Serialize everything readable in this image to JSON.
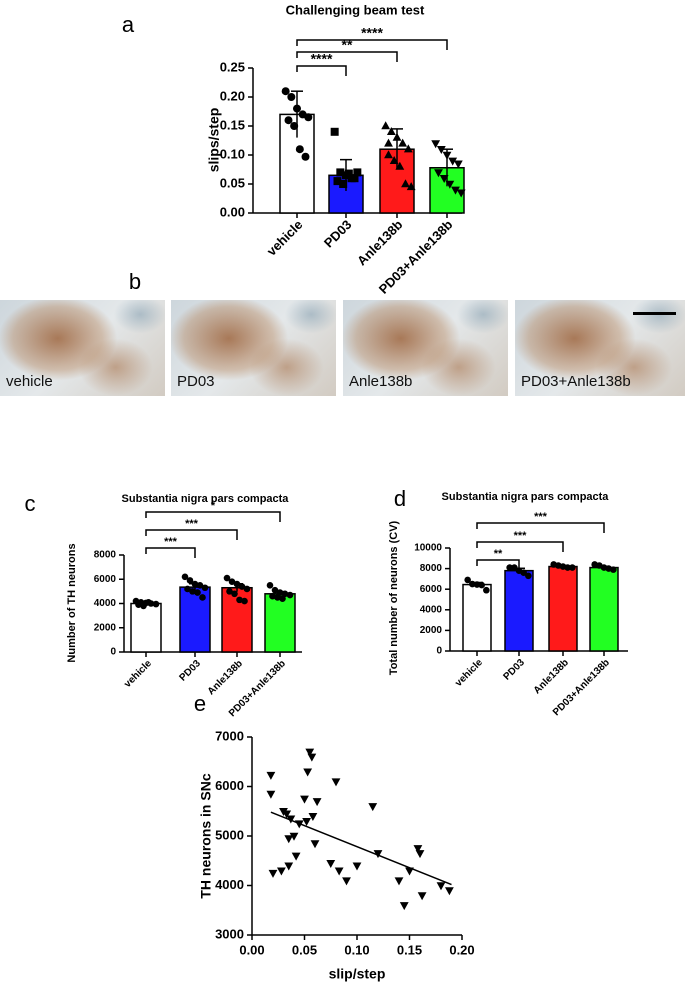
{
  "panel_labels": [
    "a",
    "b",
    "c",
    "d",
    "e"
  ],
  "micrographs": {
    "labels": [
      "vehicle",
      "PD03",
      "Anle138b",
      "PD03+Anle138b"
    ]
  },
  "chart_data": [
    {
      "type": "bar",
      "title": "Challenging beam test",
      "y_label": "slips/step",
      "categories": [
        "vehicle",
        "PD03",
        "Anle138b",
        "PD03+Anle138b"
      ],
      "values": [
        0.17,
        0.065,
        0.11,
        0.078
      ],
      "errors": [
        0.04,
        0.027,
        0.035,
        0.032
      ],
      "colors": [
        "#ffffff",
        "#1a1aff",
        "#ff1a1a",
        "#22ff22"
      ],
      "markers": [
        "circle",
        "square",
        "triangle",
        "triangle-down"
      ],
      "points": [
        [
          0.21,
          0.2,
          0.18,
          0.17,
          0.165,
          0.16,
          0.15,
          0.11,
          0.097
        ],
        [
          0.14,
          0.07,
          0.065,
          0.06,
          0.07,
          0.055,
          0.05,
          0.068,
          0.06
        ],
        [
          0.15,
          0.14,
          0.13,
          0.12,
          0.11,
          0.1,
          0.09,
          0.08,
          0.05,
          0.045,
          0.12
        ],
        [
          0.12,
          0.11,
          0.1,
          0.09,
          0.085,
          0.07,
          0.06,
          0.05,
          0.04,
          0.035
        ]
      ],
      "significance": [
        null,
        "****",
        "**",
        "****"
      ],
      "ylim": [
        0,
        0.25
      ],
      "yticks": [
        {
          "value": 0,
          "label": "0.00"
        },
        {
          "value": 0.05,
          "label": "0.05"
        },
        {
          "value": 0.1,
          "label": "0.10"
        },
        {
          "value": 0.15,
          "label": "0.15"
        },
        {
          "value": 0.2,
          "label": "0.20"
        },
        {
          "value": 0.25,
          "label": "0.25"
        }
      ],
      "grid": false
    },
    {
      "type": "bar",
      "title": "Substantia nigra pars compacta",
      "y_label": "Number of TH neurons",
      "categories": [
        "vehicle",
        "PD03",
        "Anle138b",
        "PD03+Anle138b"
      ],
      "values": [
        4000,
        5350,
        5300,
        4800
      ],
      "errors": [
        100,
        280,
        330,
        180
      ],
      "colors": [
        "#ffffff",
        "#1a1aff",
        "#ff1a1a",
        "#22ff22"
      ],
      "markers": [
        "circle",
        "circle",
        "circle",
        "circle"
      ],
      "points": [
        [
          4200,
          4100,
          4050,
          4000,
          3950,
          3900,
          3800,
          4100
        ],
        [
          6200,
          5900,
          5600,
          5500,
          5300,
          5200,
          5000,
          4900,
          4500
        ],
        [
          6100,
          5800,
          5600,
          5400,
          5200,
          5000,
          4800,
          4300,
          4200
        ],
        [
          5500,
          5100,
          4900,
          4800,
          4700,
          4600,
          4500,
          4400
        ]
      ],
      "significance": [
        null,
        "***",
        "***",
        "*"
      ],
      "ylim": [
        0,
        8000
      ],
      "yticks": [
        0,
        2000,
        4000,
        6000,
        8000
      ],
      "grid": false
    },
    {
      "type": "bar",
      "title": "Substantia nigra pars compacta",
      "y_label": "Total number of neurons (CV)",
      "categories": [
        "vehicle",
        "PD03",
        "Anle138b",
        "PD03+Anle138b"
      ],
      "values": [
        6450,
        7800,
        8200,
        8100
      ],
      "errors": [
        200,
        230,
        100,
        120
      ],
      "colors": [
        "#ffffff",
        "#1a1aff",
        "#ff1a1a",
        "#22ff22"
      ],
      "markers": [
        "circle",
        "circle",
        "circle",
        "circle"
      ],
      "points": [
        [
          6900,
          6500,
          6450,
          6400,
          5900
        ],
        [
          8100,
          8100,
          7800,
          7600,
          7300
        ],
        [
          8400,
          8300,
          8200,
          8100,
          8100
        ],
        [
          8400,
          8300,
          8100,
          8000,
          7900
        ]
      ],
      "significance": [
        null,
        "**",
        "***",
        "***"
      ],
      "ylim": [
        0,
        10000
      ],
      "yticks": [
        0,
        2000,
        4000,
        6000,
        8000,
        10000
      ],
      "grid": false
    },
    {
      "type": "scatter",
      "x_label": "slip/step",
      "y_label": "TH neurons in SNc",
      "marker": "triangle-down",
      "x": [
        0.018,
        0.018,
        0.02,
        0.028,
        0.03,
        0.033,
        0.035,
        0.035,
        0.037,
        0.04,
        0.042,
        0.045,
        0.05,
        0.052,
        0.053,
        0.055,
        0.057,
        0.058,
        0.06,
        0.062,
        0.075,
        0.08,
        0.083,
        0.09,
        0.1,
        0.115,
        0.12,
        0.14,
        0.145,
        0.15,
        0.158,
        0.16,
        0.162,
        0.18,
        0.188
      ],
      "y": [
        6230,
        5850,
        4250,
        4300,
        5500,
        5450,
        4400,
        4950,
        5350,
        5000,
        4600,
        5250,
        5750,
        5300,
        6300,
        6700,
        6600,
        5400,
        4850,
        5700,
        4450,
        6100,
        4300,
        4100,
        4400,
        5600,
        4650,
        4100,
        3600,
        4300,
        4750,
        4650,
        3800,
        4000,
        3900
      ],
      "line": {
        "x": [
          0.018,
          0.19
        ],
        "y": [
          5480,
          4020
        ]
      },
      "xlim": [
        0,
        0.2
      ],
      "xticks": [
        {
          "value": 0,
          "label": "0.00"
        },
        {
          "value": 0.05,
          "label": "0.05"
        },
        {
          "value": 0.1,
          "label": "0.10"
        },
        {
          "value": 0.15,
          "label": "0.15"
        },
        {
          "value": 0.2,
          "label": "0.20"
        }
      ],
      "ylim": [
        3000,
        7000
      ],
      "yticks": [
        3000,
        4000,
        5000,
        6000,
        7000
      ],
      "grid": false
    }
  ]
}
